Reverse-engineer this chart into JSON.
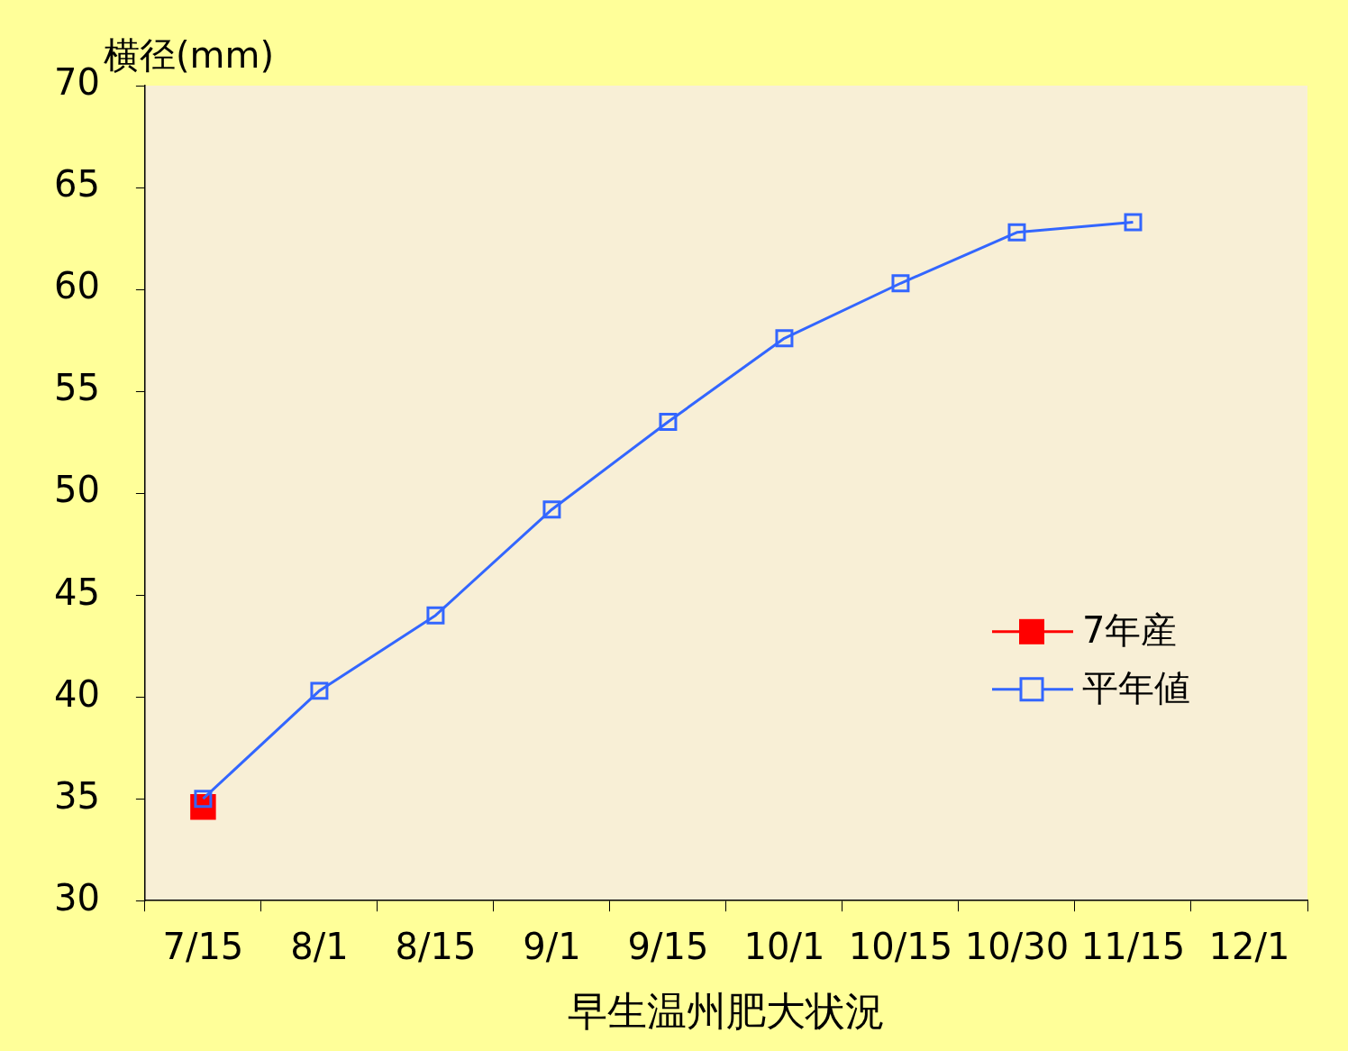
{
  "chart_data": {
    "type": "line",
    "ylabel": "横径(mm)",
    "xlabel": "早生温州肥大状況",
    "categories": [
      "7/15",
      "8/1",
      "8/15",
      "9/1",
      "9/15",
      "10/1",
      "10/15",
      "10/30",
      "11/15",
      "12/1"
    ],
    "series": [
      {
        "name": "7年産",
        "color": "#ff0000",
        "values": [
          34.6,
          null,
          null,
          null,
          null,
          null,
          null,
          null,
          null,
          null
        ]
      },
      {
        "name": "平年値",
        "color": "#3366ff",
        "values": [
          35.0,
          40.3,
          44.0,
          49.2,
          53.5,
          57.6,
          60.3,
          62.8,
          63.3,
          null
        ]
      }
    ],
    "ylim": [
      30,
      70
    ],
    "yticks": [
      30,
      35,
      40,
      45,
      50,
      55,
      60,
      65,
      70
    ],
    "grid": false,
    "legend": "right",
    "marker": "square",
    "line_style": "solid"
  }
}
